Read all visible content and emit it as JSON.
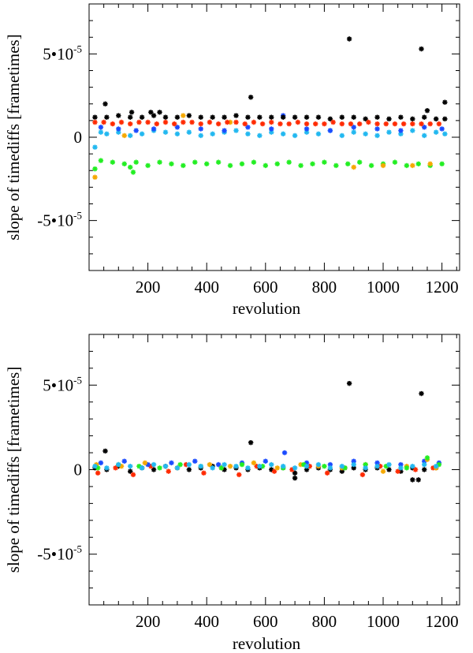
{
  "chart_data": [
    {
      "type": "scatter",
      "panel": "top",
      "xlabel": "revolution",
      "ylabel": "slope of timediffs [frametimes]",
      "xlim": [
        0,
        1260
      ],
      "ylim": [
        -8e-05,
        8e-05
      ],
      "x_ticks": [
        {
          "value": 200,
          "label": "200"
        },
        {
          "value": 400,
          "label": "400"
        },
        {
          "value": 600,
          "label": "600"
        },
        {
          "value": 800,
          "label": "800"
        },
        {
          "value": 1000,
          "label": "1000"
        },
        {
          "value": 1200,
          "label": "1200"
        }
      ],
      "y_ticks": [
        {
          "value": 5e-05,
          "label": "5•10-5",
          "base": "5•10",
          "exp": "-5"
        },
        {
          "value": 0,
          "label": "0",
          "base": "0",
          "exp": ""
        },
        {
          "value": -5e-05,
          "label": "-5•10-5",
          "base": "-5•10",
          "exp": "-5"
        }
      ],
      "marker": "asterisk",
      "series": [
        {
          "name": "green",
          "color": "#22ee22",
          "x": [
            20,
            40,
            80,
            120,
            140,
            160,
            200,
            240,
            280,
            320,
            360,
            400,
            440,
            480,
            520,
            560,
            600,
            640,
            680,
            720,
            760,
            800,
            840,
            880,
            920,
            960,
            1000,
            1040,
            1080,
            1120,
            1160,
            1200,
            150
          ],
          "y": [
            -1.9e-05,
            -1.4e-05,
            -1.5e-05,
            -1.6e-05,
            -1.8e-05,
            -1.5e-05,
            -1.7e-05,
            -1.5e-05,
            -1.6e-05,
            -1.7e-05,
            -1.5e-05,
            -1.6e-05,
            -1.5e-05,
            -1.7e-05,
            -1.6e-05,
            -1.5e-05,
            -1.7e-05,
            -1.6e-05,
            -1.5e-05,
            -1.7e-05,
            -1.6e-05,
            -1.5e-05,
            -1.7e-05,
            -1.6e-05,
            -1.5e-05,
            -1.7e-05,
            -1.6e-05,
            -1.5e-05,
            -1.7e-05,
            -1.6e-05,
            -1.7e-05,
            -1.6e-05,
            -2.1e-05
          ]
        },
        {
          "name": "orange",
          "color": "#f5a800",
          "x": [
            20,
            120,
            320,
            480,
            900,
            1000,
            1100,
            1160
          ],
          "y": [
            -2.4e-05,
            1e-06,
            1.3e-05,
            9e-06,
            -1.8e-05,
            -1.7e-05,
            -1.7e-05,
            -1.6e-05
          ]
        },
        {
          "name": "cyan",
          "color": "#22b8f0",
          "x": [
            20,
            40,
            60,
            100,
            140,
            180,
            220,
            260,
            300,
            340,
            380,
            420,
            460,
            500,
            540,
            580,
            620,
            660,
            700,
            740,
            780,
            820,
            860,
            900,
            940,
            980,
            1020,
            1060,
            1100,
            1140,
            1180,
            1210
          ],
          "y": [
            -6e-06,
            3e-06,
            2e-06,
            3e-06,
            1e-06,
            2e-06,
            4e-06,
            3e-06,
            2e-06,
            3e-06,
            1e-06,
            2e-06,
            3e-06,
            4e-06,
            2e-06,
            1e-06,
            3e-06,
            2e-06,
            1e-06,
            3e-06,
            2e-06,
            4e-06,
            1e-06,
            3e-06,
            2e-06,
            1e-06,
            3e-06,
            2e-06,
            4e-06,
            1e-06,
            3e-06,
            2e-06
          ]
        },
        {
          "name": "blue",
          "color": "#1a4aff",
          "x": [
            40,
            100,
            160,
            220,
            300,
            380,
            460,
            540,
            620,
            660,
            740,
            820,
            900,
            980,
            1060,
            1140,
            1200
          ],
          "y": [
            6e-06,
            5e-06,
            4e-06,
            5e-06,
            6e-06,
            5e-06,
            4e-06,
            6e-06,
            5e-06,
            1.3e-05,
            5e-06,
            4e-06,
            6e-06,
            5e-06,
            4e-06,
            6e-06,
            5e-06
          ]
        },
        {
          "name": "black",
          "color": "#000000",
          "x": [
            20,
            60,
            100,
            140,
            180,
            220,
            260,
            300,
            340,
            380,
            420,
            460,
            500,
            540,
            580,
            620,
            660,
            700,
            740,
            780,
            820,
            860,
            900,
            940,
            980,
            1020,
            1060,
            1100,
            1140,
            1180,
            1210,
            55,
            145,
            210,
            240,
            550,
            885,
            1130,
            1150,
            1210
          ],
          "y": [
            1.2e-05,
            1.2e-05,
            1.3e-05,
            1.2e-05,
            1.2e-05,
            1.3e-05,
            1.2e-05,
            1.2e-05,
            1.3e-05,
            1.2e-05,
            1.2e-05,
            1.2e-05,
            1.3e-05,
            1.2e-05,
            1.2e-05,
            1.2e-05,
            1.2e-05,
            1.2e-05,
            1.2e-05,
            1.2e-05,
            1.1e-05,
            1.2e-05,
            1.2e-05,
            1.1e-05,
            1.2e-05,
            1.1e-05,
            1.2e-05,
            1.1e-05,
            1.2e-05,
            1.1e-05,
            1.1e-05,
            2e-05,
            1.5e-05,
            1.5e-05,
            1.5e-05,
            2.4e-05,
            5.9e-05,
            5.3e-05,
            1.6e-05,
            2.1e-05
          ]
        },
        {
          "name": "red",
          "color": "#ff2a00",
          "x": [
            20,
            50,
            80,
            110,
            140,
            170,
            200,
            230,
            260,
            290,
            320,
            350,
            380,
            410,
            440,
            470,
            500,
            530,
            560,
            590,
            620,
            650,
            680,
            710,
            740,
            770,
            800,
            830,
            860,
            890,
            920,
            950,
            980,
            1010,
            1040,
            1070,
            1100,
            1130,
            1160,
            1190
          ],
          "y": [
            9e-06,
            9e-06,
            8e-06,
            9e-06,
            8e-06,
            9e-06,
            9e-06,
            8e-06,
            9e-06,
            8e-06,
            9e-06,
            9e-06,
            8e-06,
            9e-06,
            8e-06,
            9e-06,
            9e-06,
            8e-06,
            9e-06,
            8e-06,
            9e-06,
            8e-06,
            8e-06,
            9e-06,
            8e-06,
            8e-06,
            8e-06,
            9e-06,
            8e-06,
            8e-06,
            8e-06,
            9e-06,
            8e-06,
            8e-06,
            8e-06,
            8e-06,
            8e-06,
            8e-06,
            8e-06,
            8e-06
          ]
        }
      ]
    },
    {
      "type": "scatter",
      "panel": "bottom",
      "xlabel": "revolution",
      "ylabel": "slope of timediffs [frametimes]",
      "xlim": [
        0,
        1260
      ],
      "ylim": [
        -8e-05,
        8e-05
      ],
      "x_ticks": [
        {
          "value": 200,
          "label": "200"
        },
        {
          "value": 400,
          "label": "400"
        },
        {
          "value": 600,
          "label": "600"
        },
        {
          "value": 800,
          "label": "800"
        },
        {
          "value": 1000,
          "label": "1000"
        },
        {
          "value": 1200,
          "label": "1200"
        }
      ],
      "y_ticks": [
        {
          "value": 5e-05,
          "label": "5•10-5",
          "base": "5•10",
          "exp": "-5"
        },
        {
          "value": 0,
          "label": "0",
          "base": "0",
          "exp": ""
        },
        {
          "value": -5e-05,
          "label": "-5•10-5",
          "base": "-5•10",
          "exp": "-5"
        }
      ],
      "marker": "asterisk",
      "series": [
        {
          "name": "black",
          "color": "#000000",
          "x": [
            20,
            60,
            100,
            140,
            180,
            220,
            260,
            300,
            340,
            380,
            420,
            460,
            500,
            540,
            580,
            620,
            660,
            700,
            740,
            780,
            820,
            860,
            900,
            940,
            980,
            1020,
            1060,
            1100,
            1140,
            1180,
            55,
            550,
            885,
            1130,
            1100,
            1120,
            700
          ],
          "y": [
            1e-06,
            0,
            2e-06,
            -1e-06,
            1e-06,
            0,
            2e-06,
            1e-06,
            0,
            1e-06,
            2e-06,
            0,
            1e-06,
            0,
            1e-06,
            0,
            1e-06,
            -2e-06,
            0,
            1e-06,
            0,
            -1e-06,
            1e-06,
            0,
            1e-06,
            0,
            -1e-06,
            1e-06,
            0,
            1e-06,
            1.1e-05,
            1.6e-05,
            5.1e-05,
            4.5e-05,
            -6e-06,
            -6e-06,
            -5e-06
          ]
        },
        {
          "name": "red",
          "color": "#ff2a00",
          "x": [
            30,
            90,
            150,
            210,
            270,
            330,
            390,
            450,
            510,
            570,
            630,
            690,
            750,
            810,
            870,
            930,
            990,
            1050,
            1110,
            1170
          ],
          "y": [
            -2e-06,
            1e-06,
            -3e-06,
            2e-06,
            -1e-06,
            3e-06,
            -2e-06,
            1e-06,
            -3e-06,
            2e-06,
            -1e-06,
            0,
            2e-06,
            -2e-06,
            1e-06,
            -3e-06,
            2e-06,
            -1e-06,
            0,
            1e-06
          ]
        },
        {
          "name": "blue",
          "color": "#1a4aff",
          "x": [
            40,
            120,
            200,
            280,
            360,
            440,
            520,
            600,
            665,
            740,
            820,
            900,
            980,
            1060,
            1140,
            1190
          ],
          "y": [
            4e-06,
            5e-06,
            3e-06,
            4e-06,
            5e-06,
            3e-06,
            4e-06,
            5e-06,
            1e-05,
            4e-06,
            3e-06,
            5e-06,
            4e-06,
            3e-06,
            5e-06,
            4e-06
          ]
        },
        {
          "name": "orange",
          "color": "#f5a800",
          "x": [
            25,
            110,
            190,
            300,
            410,
            480,
            560,
            640,
            720,
            780,
            860,
            940,
            1000,
            1080,
            1150,
            1180
          ],
          "y": [
            3e-06,
            2e-06,
            4e-06,
            1e-06,
            3e-06,
            2e-06,
            4e-06,
            1e-06,
            3e-06,
            2e-06,
            1e-06,
            3e-06,
            -1e-06,
            2e-06,
            6e-06,
            1e-06
          ]
        },
        {
          "name": "green",
          "color": "#22ee22",
          "x": [
            30,
            100,
            170,
            240,
            310,
            380,
            450,
            520,
            590,
            660,
            730,
            800,
            870,
            940,
            1010,
            1080,
            1150,
            1190
          ],
          "y": [
            1e-06,
            3e-06,
            2e-06,
            1e-06,
            3e-06,
            2e-06,
            1e-06,
            3e-06,
            2e-06,
            1e-06,
            3e-06,
            2e-06,
            1e-06,
            3e-06,
            2e-06,
            1e-06,
            7e-06,
            3e-06
          ]
        },
        {
          "name": "cyan",
          "color": "#22b8f0",
          "x": [
            20,
            60,
            100,
            140,
            180,
            220,
            260,
            300,
            340,
            380,
            420,
            460,
            500,
            540,
            580,
            620,
            660,
            700,
            740,
            780,
            820,
            860,
            900,
            940,
            980,
            1020,
            1060,
            1100,
            1140,
            1180
          ],
          "y": [
            2e-06,
            1e-06,
            3e-06,
            2e-06,
            1e-06,
            3e-06,
            2e-06,
            1e-06,
            3e-06,
            2e-06,
            1e-06,
            3e-06,
            2e-06,
            1e-06,
            2e-06,
            3e-06,
            2e-06,
            1e-06,
            2e-06,
            3e-06,
            1e-06,
            2e-06,
            3e-06,
            1e-06,
            2e-06,
            3e-06,
            1e-06,
            2e-06,
            3e-06,
            2e-06
          ]
        }
      ]
    }
  ]
}
